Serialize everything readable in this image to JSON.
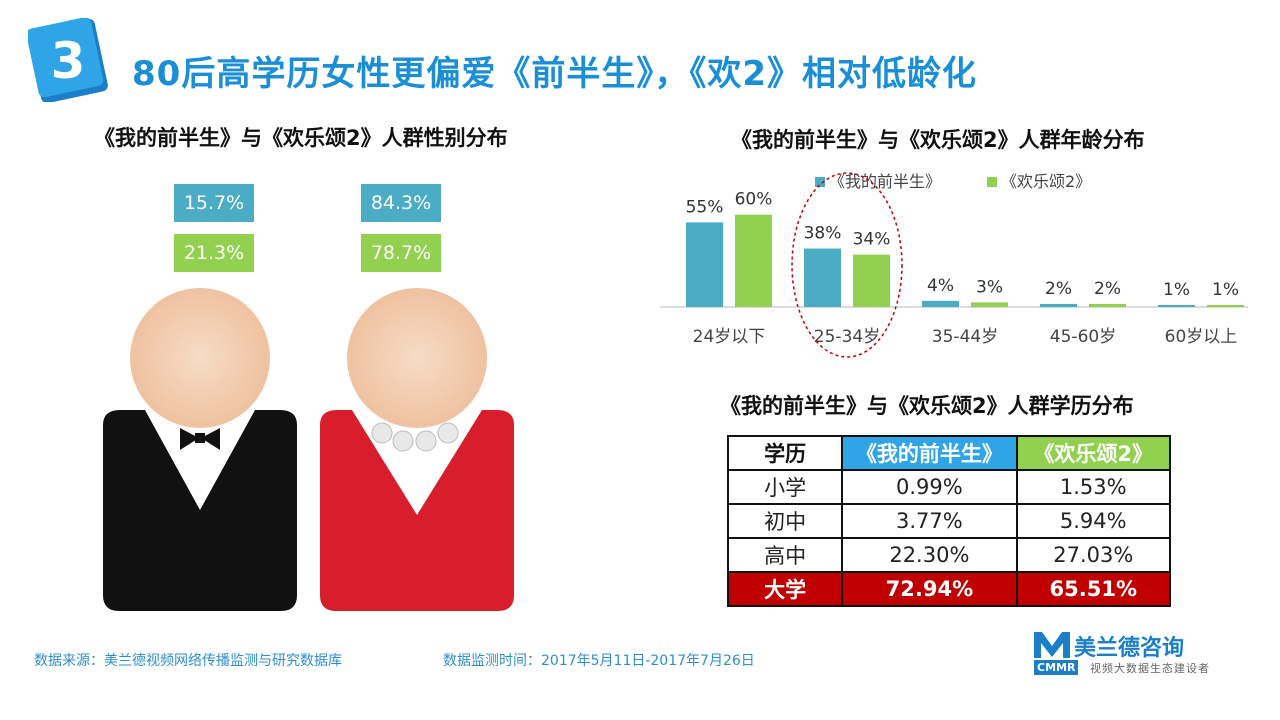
{
  "header": {
    "badge_number": "3",
    "title": "80后高学历女性更偏爱《前半生》，《欢2》相对低龄化"
  },
  "gender": {
    "title": "《我的前半生》与《欢乐颂2》人群性别分布",
    "male": {
      "series1": "15.7%",
      "series2": "21.3%"
    },
    "female": {
      "series1": "84.3%",
      "series2": "78.7%"
    }
  },
  "chart_data": {
    "type": "bar",
    "title": "《我的前半生》与《欢乐颂2》人群年龄分布",
    "categories": [
      "24岁以下",
      "25-34岁",
      "35-44岁",
      "45-60岁",
      "60岁以上"
    ],
    "series": [
      {
        "name": "《我的前半生》",
        "values": [
          55,
          38,
          4,
          2,
          1
        ],
        "labels": [
          "55%",
          "38%",
          "4%",
          "2%",
          "1%"
        ]
      },
      {
        "name": "《欢乐颂2》",
        "values": [
          60,
          34,
          3,
          2,
          1
        ],
        "labels": [
          "60%",
          "34%",
          "3%",
          "2%",
          "1%"
        ]
      }
    ],
    "ylim": [
      0,
      65
    ],
    "legend": "top",
    "colors": {
      "series1": "#4bacc6",
      "series2": "#92d050",
      "highlight": "#c00000"
    },
    "highlight_category": "25-34岁"
  },
  "education": {
    "title": "《我的前半生》与《欢乐颂2》人群学历分布",
    "headers": [
      "学历",
      "《我的前半生》",
      "《欢乐颂2》"
    ],
    "rows": [
      [
        "小学",
        "0.99%",
        "1.53%"
      ],
      [
        "初中",
        "3.77%",
        "5.94%"
      ],
      [
        "高中",
        "22.30%",
        "27.03%"
      ],
      [
        "大学",
        "72.94%",
        "65.51%"
      ]
    ]
  },
  "footer": {
    "source": "数据来源：美兰德视频网络传播监测与研究数据库",
    "period": "数据监测时间：2017年5月11日-2017年7月26日",
    "logo_name": "美兰德咨询",
    "logo_abbr": "CMMR",
    "logo_sub": "视频大数据生态建设者"
  }
}
